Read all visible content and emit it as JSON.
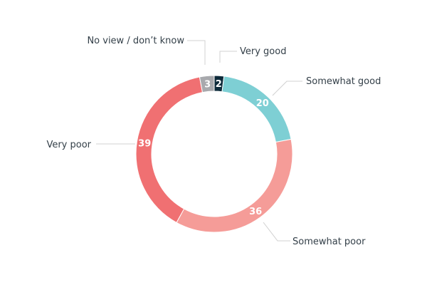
{
  "chart_data": {
    "type": "pie",
    "donut": true,
    "title": "",
    "slices": [
      {
        "name": "Very good",
        "value": 2,
        "color": "#0d2a3a"
      },
      {
        "name": "Somewhat good",
        "value": 20,
        "color": "#7ecfd4"
      },
      {
        "name": "Somewhat poor",
        "value": 36,
        "color": "#f59c98"
      },
      {
        "name": "Very poor",
        "value": 39,
        "color": "#f07072"
      },
      {
        "name": "No view / don’t know",
        "value": 3,
        "color": "#a8a9ad"
      }
    ]
  }
}
